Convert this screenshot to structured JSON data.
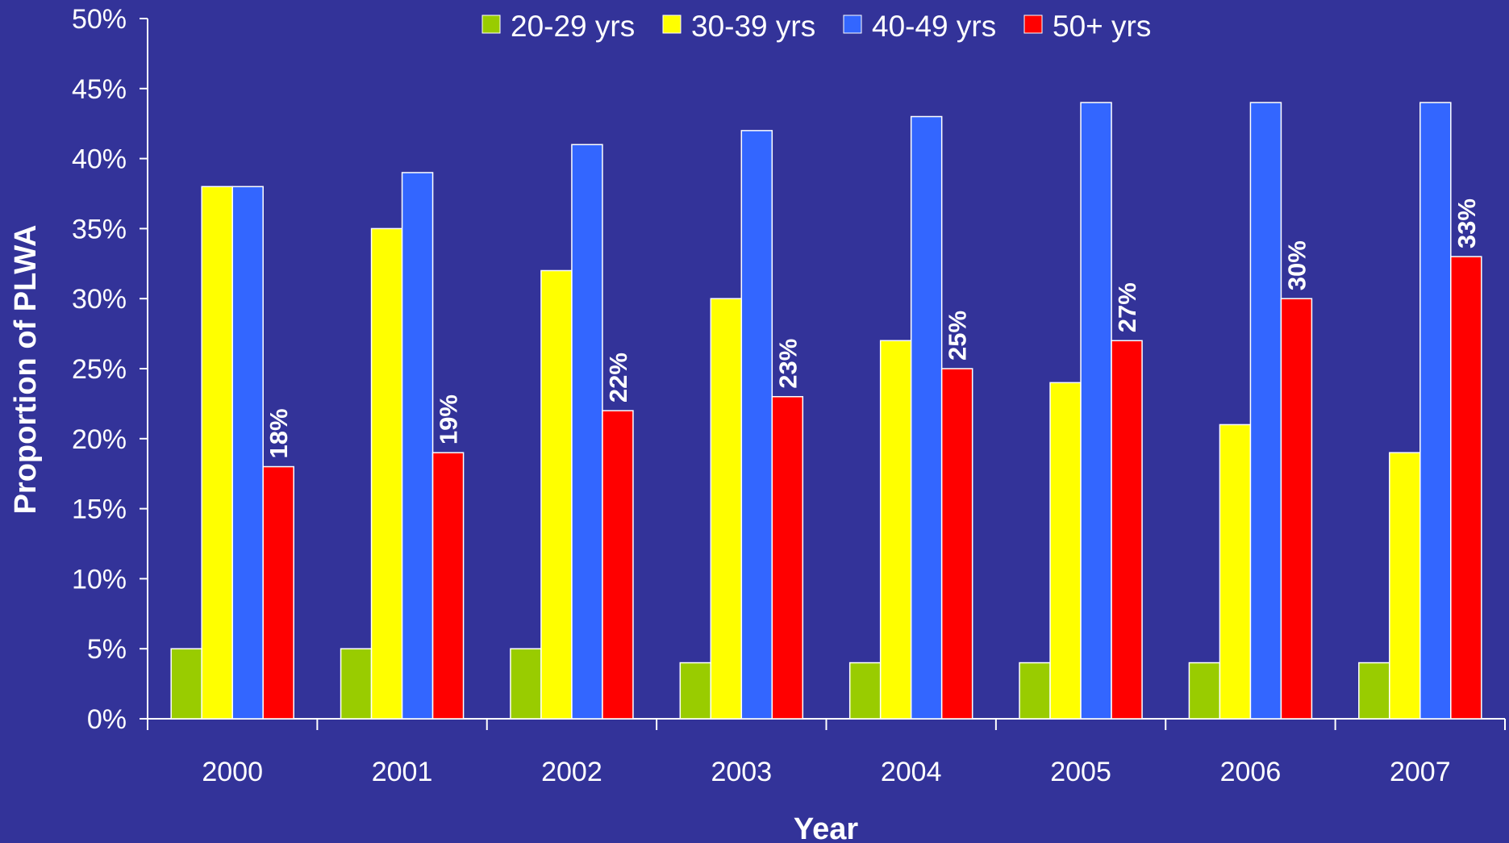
{
  "chart_data": {
    "type": "bar",
    "xlabel": "Year",
    "ylabel": "Proportion of PLWA",
    "ylim": [
      0,
      50
    ],
    "ytick_step": 5,
    "ytick_suffix": "%",
    "grid": false,
    "legend_position": "top",
    "categories": [
      "2000",
      "2001",
      "2002",
      "2003",
      "2004",
      "2005",
      "2006",
      "2007"
    ],
    "series": [
      {
        "name": "20-29 yrs",
        "color": "#99cc00",
        "values": [
          5,
          5,
          5,
          4,
          4,
          4,
          4,
          4
        ],
        "show_labels": false
      },
      {
        "name": "30-39 yrs",
        "color": "#ffff00",
        "values": [
          38,
          35,
          32,
          30,
          27,
          24,
          21,
          19
        ],
        "show_labels": false
      },
      {
        "name": "40-49 yrs",
        "color": "#3366ff",
        "values": [
          38,
          39,
          41,
          42,
          43,
          44,
          44,
          44
        ],
        "show_labels": false
      },
      {
        "name": "50+ yrs",
        "color": "#ff0000",
        "values": [
          18,
          19,
          22,
          23,
          25,
          27,
          30,
          33
        ],
        "show_labels": true,
        "labels": [
          "18%",
          "19%",
          "22%",
          "23%",
          "25%",
          "27%",
          "30%",
          "33%"
        ]
      }
    ]
  }
}
